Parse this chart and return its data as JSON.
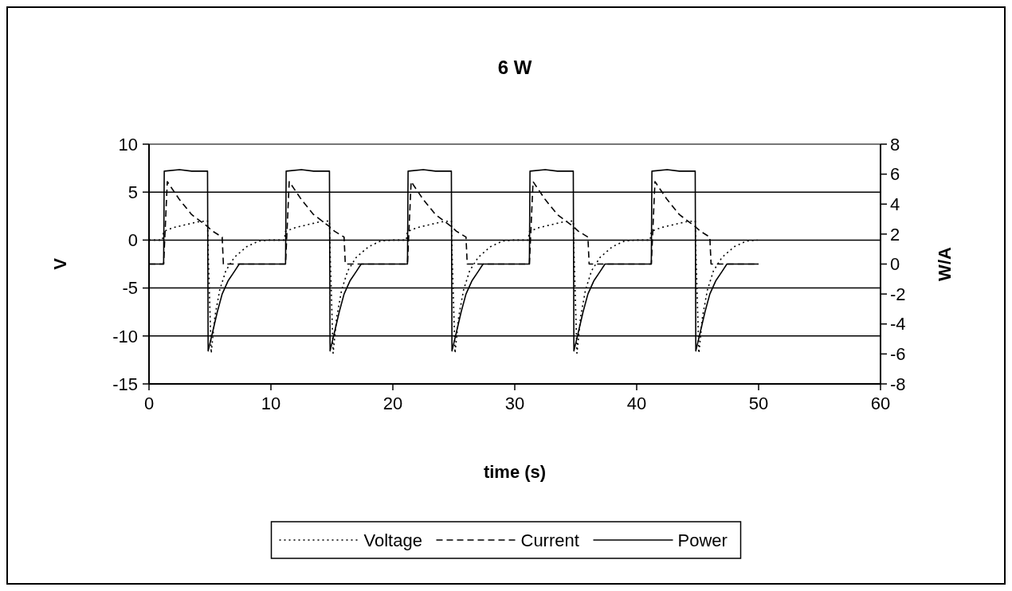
{
  "chart_data": {
    "type": "line",
    "title": "6 W",
    "xlabel": "time (s)",
    "ylabel": "V",
    "y2label": "W/A",
    "xlim": [
      0,
      60
    ],
    "xticks": [
      0,
      10,
      20,
      30,
      40,
      50,
      60
    ],
    "ylim": [
      -15,
      10
    ],
    "yticks": [
      -15,
      -10,
      -5,
      0,
      5,
      10
    ],
    "y2lim": [
      -8,
      8
    ],
    "y2ticks": [
      -8,
      -6,
      -4,
      -2,
      0,
      2,
      4,
      6,
      8
    ],
    "grid": "y",
    "legend": "bottom",
    "series": [
      {
        "name": "Voltage",
        "color": "#000000",
        "line_style": "dotted",
        "axis": "y",
        "x": [
          0,
          1.1,
          1.2,
          2,
          3,
          4,
          4.8,
          4.85,
          5.1,
          5.4,
          5.8,
          6.3,
          7,
          8,
          9,
          9.9,
          10,
          11.1,
          11.2,
          12,
          13,
          14,
          14.8,
          14.85,
          15.1,
          15.4,
          15.8,
          16.3,
          17,
          18,
          19,
          19.9,
          20,
          21.1,
          21.2,
          22,
          23,
          24,
          24.8,
          24.85,
          25.1,
          25.4,
          25.8,
          26.3,
          27,
          28,
          29,
          29.9,
          30,
          31.1,
          31.2,
          32,
          33,
          34,
          34.8,
          34.85,
          35.1,
          35.4,
          35.8,
          36.3,
          37,
          38,
          39,
          39.9,
          40,
          41.1,
          41.2,
          42,
          43,
          44,
          44.8,
          44.85,
          45.1,
          45.4,
          45.8,
          46.3,
          47,
          48,
          49,
          49.9
        ],
        "values": [
          0,
          0,
          0.9,
          1.3,
          1.6,
          1.9,
          2,
          -1,
          -11.8,
          -8,
          -5.2,
          -3.2,
          -1.8,
          -0.7,
          -0.1,
          0,
          0,
          0,
          0.9,
          1.3,
          1.6,
          1.9,
          2,
          -1,
          -11.8,
          -8,
          -5.2,
          -3.2,
          -1.8,
          -0.7,
          -0.1,
          0,
          0,
          0,
          0.9,
          1.3,
          1.6,
          1.9,
          2,
          -1,
          -11.8,
          -8,
          -5.2,
          -3.2,
          -1.8,
          -0.7,
          -0.1,
          0,
          0,
          0,
          0.9,
          1.3,
          1.6,
          1.9,
          2,
          -1,
          -11.8,
          -8,
          -5.2,
          -3.2,
          -1.8,
          -0.7,
          -0.1,
          0,
          0,
          0,
          0.9,
          1.3,
          1.6,
          1.9,
          2,
          -1,
          -11.8,
          -8,
          -5.2,
          -3.2,
          -1.8,
          -0.7,
          -0.1,
          0
        ]
      },
      {
        "name": "Current",
        "color": "#000000",
        "line_style": "dashed",
        "axis": "y2",
        "x": [
          0,
          1.2,
          1.5,
          2.5,
          3.5,
          4.8,
          5.2,
          6,
          6.1,
          10,
          11.2,
          11.5,
          12.5,
          13.5,
          14.8,
          15.2,
          16,
          16.1,
          20,
          21.2,
          21.5,
          22.5,
          23.5,
          24.8,
          25.2,
          26,
          26.1,
          30,
          31.2,
          31.5,
          32.5,
          33.5,
          34.8,
          35.2,
          36,
          36.1,
          40,
          41.2,
          41.5,
          42.5,
          43.5,
          44.8,
          45.2,
          46,
          46.1,
          50
        ],
        "values": [
          0,
          0,
          5.5,
          4.3,
          3.3,
          2.5,
          2.2,
          1.8,
          0,
          0,
          0,
          5.5,
          4.3,
          3.3,
          2.5,
          2.2,
          1.8,
          0,
          0,
          0,
          5.5,
          4.3,
          3.3,
          2.5,
          2.2,
          1.8,
          0,
          0,
          0,
          5.5,
          4.3,
          3.3,
          2.5,
          2.2,
          1.8,
          0,
          0,
          0,
          5.5,
          4.3,
          3.3,
          2.5,
          2.2,
          1.8,
          0,
          0
        ]
      },
      {
        "name": "Power",
        "color": "#000000",
        "line_style": "solid",
        "axis": "y2",
        "x": [
          0,
          1.2,
          1.25,
          2.5,
          3.5,
          4.8,
          4.85,
          5.2,
          5.6,
          6,
          6.5,
          7,
          7.4,
          10,
          11.2,
          11.25,
          12.5,
          13.5,
          14.8,
          14.85,
          15.2,
          15.6,
          16,
          16.5,
          17,
          17.4,
          20,
          21.2,
          21.25,
          22.5,
          23.5,
          24.8,
          24.85,
          25.2,
          25.6,
          26,
          26.5,
          27,
          27.4,
          30,
          31.2,
          31.25,
          32.5,
          33.5,
          34.8,
          34.85,
          35.2,
          35.6,
          36,
          36.5,
          37,
          37.4,
          40,
          41.2,
          41.25,
          42.5,
          43.5,
          44.8,
          44.85,
          45.2,
          45.6,
          46,
          46.5,
          47,
          47.4,
          50
        ],
        "values": [
          0,
          0,
          6.2,
          6.3,
          6.2,
          6.2,
          -5.8,
          -4.6,
          -3.2,
          -2,
          -1.1,
          -0.5,
          0,
          0,
          0,
          6.2,
          6.3,
          6.2,
          6.2,
          -5.8,
          -4.6,
          -3.2,
          -2,
          -1.1,
          -0.5,
          0,
          0,
          0,
          6.2,
          6.3,
          6.2,
          6.2,
          -5.8,
          -4.6,
          -3.2,
          -2,
          -1.1,
          -0.5,
          0,
          0,
          0,
          6.2,
          6.3,
          6.2,
          6.2,
          -5.8,
          -4.6,
          -3.2,
          -2,
          -1.1,
          -0.5,
          0,
          0,
          0,
          6.2,
          6.3,
          6.2,
          6.2,
          -5.8,
          -4.6,
          -3.2,
          -2,
          -1.1,
          -0.5,
          0,
          0
        ]
      }
    ]
  }
}
